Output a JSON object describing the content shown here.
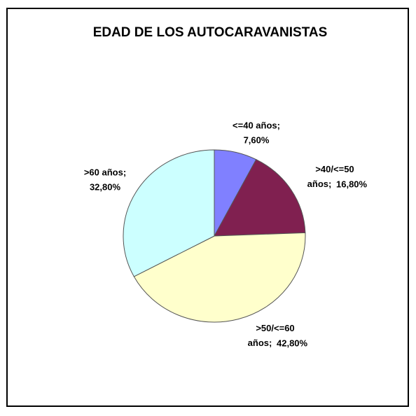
{
  "chart_data": {
    "type": "pie",
    "title": "EDAD DE LOS AUTOCARAVANISTAS",
    "categories": [
      "<=40 años;",
      ">40/<=50 años;",
      ">50/<=60 años;",
      ">60 años;"
    ],
    "values": [
      7.6,
      16.8,
      42.8,
      32.8
    ],
    "value_labels": [
      "7,60%",
      "16,80%",
      "42,80%",
      "32,80%"
    ],
    "colors": [
      "#8080ff",
      "#802050",
      "#ffffcc",
      "#ccffff"
    ]
  }
}
